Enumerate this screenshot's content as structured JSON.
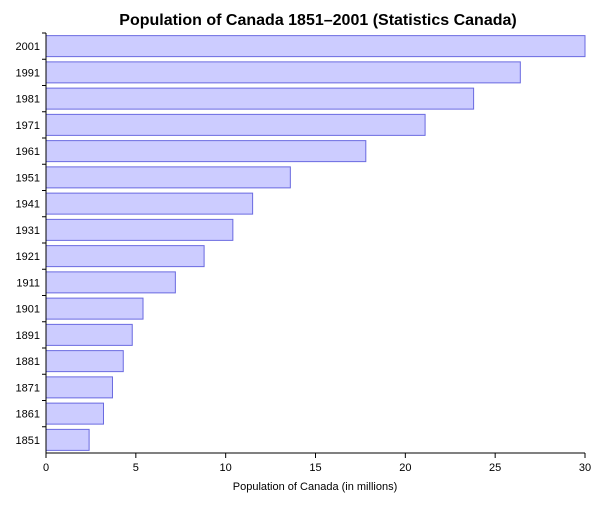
{
  "chart_data": {
    "type": "bar",
    "orientation": "horizontal",
    "title": "Population of Canada 1851–2001 (Statistics Canada)",
    "xlabel": "Population of Canada (in millions)",
    "ylabel": "",
    "categories": [
      "1851",
      "1861",
      "1871",
      "1881",
      "1891",
      "1901",
      "1911",
      "1921",
      "1931",
      "1941",
      "1951",
      "1961",
      "1971",
      "1981",
      "1991",
      "2001"
    ],
    "values": [
      2.4,
      3.2,
      3.7,
      4.3,
      4.8,
      5.4,
      7.2,
      8.8,
      10.4,
      11.5,
      13.6,
      17.8,
      21.1,
      23.8,
      26.4,
      30.0
    ],
    "xlim": [
      0,
      30
    ],
    "xticks": [
      0,
      5,
      10,
      15,
      20,
      25,
      30
    ],
    "grid": false,
    "legend": "none",
    "bar_fill": "#ccccff",
    "bar_stroke": "#6a6ae0"
  }
}
